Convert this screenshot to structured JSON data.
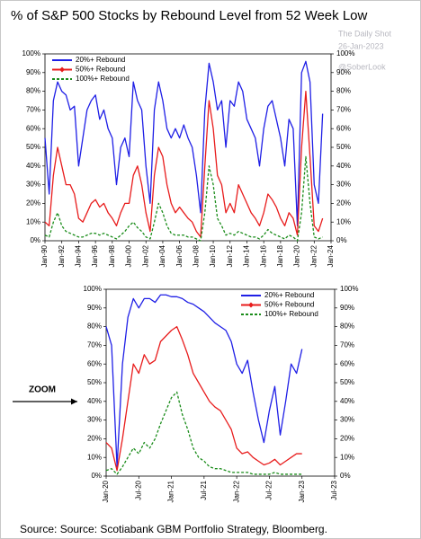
{
  "title": "% of S&P 500 Stocks by Rebound Level from 52 Week Low",
  "watermark": [
    "The Daily Shot",
    "26-Jan-2023",
    "@SoberLook"
  ],
  "annotation": "ZOOM",
  "source": "Source: Source: Scotiabank GBM Portfolio Strategy, Bloomberg.",
  "chart_data": [
    {
      "type": "line",
      "legend": "upper left",
      "x": [
        "1990-01",
        "1990-07",
        "1991-01",
        "1991-07",
        "1992-01",
        "1992-07",
        "1993-01",
        "1993-07",
        "1994-01",
        "1994-07",
        "1995-01",
        "1995-07",
        "1996-01",
        "1996-07",
        "1997-01",
        "1997-07",
        "1998-01",
        "1998-07",
        "1999-01",
        "1999-07",
        "2000-01",
        "2000-07",
        "2001-01",
        "2001-07",
        "2002-01",
        "2002-07",
        "2003-01",
        "2003-07",
        "2004-01",
        "2004-07",
        "2005-01",
        "2005-07",
        "2006-01",
        "2006-07",
        "2007-01",
        "2007-07",
        "2008-01",
        "2008-07",
        "2009-01",
        "2009-07",
        "2010-01",
        "2010-07",
        "2011-01",
        "2011-07",
        "2012-01",
        "2012-07",
        "2013-01",
        "2013-07",
        "2014-01",
        "2014-07",
        "2015-01",
        "2015-07",
        "2016-01",
        "2016-07",
        "2017-01",
        "2017-07",
        "2018-01",
        "2018-07",
        "2019-01",
        "2019-07",
        "2020-01",
        "2020-07",
        "2021-01",
        "2021-07",
        "2022-01",
        "2022-07",
        "2023-01"
      ],
      "series": [
        {
          "name": "20%+ Rebound",
          "color": "#1f1fe6",
          "dash": false,
          "marker": "none",
          "values": [
            55,
            25,
            75,
            85,
            80,
            78,
            70,
            72,
            40,
            55,
            70,
            75,
            78,
            65,
            70,
            60,
            55,
            30,
            50,
            55,
            45,
            85,
            75,
            70,
            40,
            20,
            70,
            85,
            75,
            60,
            55,
            60,
            55,
            62,
            55,
            50,
            35,
            15,
            70,
            95,
            85,
            70,
            75,
            50,
            75,
            72,
            85,
            80,
            65,
            60,
            55,
            40,
            60,
            72,
            75,
            65,
            55,
            40,
            65,
            60,
            8,
            90,
            96,
            85,
            30,
            20,
            68
          ]
        },
        {
          "name": "50%+ Rebound",
          "color": "#e81c1c",
          "dash": false,
          "marker": "diamond",
          "values": [
            10,
            8,
            35,
            50,
            40,
            30,
            30,
            25,
            12,
            10,
            15,
            20,
            22,
            18,
            20,
            15,
            12,
            8,
            15,
            20,
            20,
            35,
            40,
            30,
            15,
            5,
            35,
            50,
            45,
            30,
            20,
            15,
            18,
            15,
            12,
            10,
            5,
            2,
            40,
            75,
            60,
            35,
            30,
            15,
            20,
            15,
            30,
            25,
            20,
            15,
            12,
            8,
            15,
            25,
            22,
            18,
            12,
            8,
            15,
            12,
            3,
            50,
            80,
            45,
            8,
            5,
            12
          ]
        },
        {
          "name": "100%+ Rebound",
          "color": "#1a8c1a",
          "dash": true,
          "marker": "none",
          "values": [
            3,
            2,
            10,
            15,
            8,
            5,
            4,
            3,
            2,
            2,
            3,
            4,
            4,
            3,
            4,
            3,
            2,
            1,
            3,
            5,
            8,
            10,
            7,
            5,
            2,
            1,
            10,
            20,
            15,
            8,
            4,
            3,
            3,
            3,
            2,
            2,
            1,
            0,
            15,
            40,
            30,
            12,
            8,
            3,
            4,
            3,
            5,
            4,
            3,
            2,
            2,
            1,
            3,
            6,
            4,
            3,
            2,
            1,
            3,
            2,
            0,
            15,
            45,
            20,
            2,
            1,
            2
          ]
        }
      ],
      "xlim": [
        "1990-01",
        "2024-01"
      ],
      "xticks": [
        {
          "value": "1990-01",
          "label": "Jan-90"
        },
        {
          "value": "1992-01",
          "label": "Jan-92"
        },
        {
          "value": "1994-01",
          "label": "Jan-94"
        },
        {
          "value": "1996-01",
          "label": "Jan-96"
        },
        {
          "value": "1998-01",
          "label": "Jan-98"
        },
        {
          "value": "2000-01",
          "label": "Jan-00"
        },
        {
          "value": "2002-01",
          "label": "Jan-02"
        },
        {
          "value": "2004-01",
          "label": "Jan-04"
        },
        {
          "value": "2006-01",
          "label": "Jan-06"
        },
        {
          "value": "2008-01",
          "label": "Jan-08"
        },
        {
          "value": "2010-01",
          "label": "Jan-10"
        },
        {
          "value": "2012-01",
          "label": "Jan-12"
        },
        {
          "value": "2014-01",
          "label": "Jan-14"
        },
        {
          "value": "2016-01",
          "label": "Jan-16"
        },
        {
          "value": "2018-01",
          "label": "Jan-18"
        },
        {
          "value": "2020-01",
          "label": "Jan-20"
        },
        {
          "value": "2022-01",
          "label": "Jan-22"
        },
        {
          "value": "2024-01",
          "label": "Jan-24"
        }
      ],
      "ylim": [
        0,
        100
      ],
      "yticks": [
        {
          "value": 0,
          "label": "0%"
        },
        {
          "value": 10,
          "label": "10%"
        },
        {
          "value": 20,
          "label": "20%"
        },
        {
          "value": 30,
          "label": "30%"
        },
        {
          "value": 40,
          "label": "40%"
        },
        {
          "value": 50,
          "label": "50%"
        },
        {
          "value": 60,
          "label": "60%"
        },
        {
          "value": 70,
          "label": "70%"
        },
        {
          "value": 80,
          "label": "80%"
        },
        {
          "value": 90,
          "label": "90%"
        },
        {
          "value": 100,
          "label": "100%"
        }
      ],
      "y2lim": [
        0,
        100
      ],
      "y2ticks": [
        {
          "value": 0,
          "label": "0%"
        },
        {
          "value": 10,
          "label": "10%"
        },
        {
          "value": 20,
          "label": "20%"
        },
        {
          "value": 30,
          "label": "30%"
        },
        {
          "value": 40,
          "label": "40%"
        },
        {
          "value": 50,
          "label": "50%"
        },
        {
          "value": 60,
          "label": "60%"
        },
        {
          "value": 70,
          "label": "70%"
        },
        {
          "value": 80,
          "label": "80%"
        },
        {
          "value": 90,
          "label": "90%"
        },
        {
          "value": 100,
          "label": "100%"
        }
      ]
    },
    {
      "type": "line",
      "legend": "upper right",
      "x": [
        "2020-01",
        "2020-02",
        "2020-03",
        "2020-04",
        "2020-05",
        "2020-06",
        "2020-07",
        "2020-08",
        "2020-09",
        "2020-10",
        "2020-11",
        "2020-12",
        "2021-01",
        "2021-02",
        "2021-03",
        "2021-04",
        "2021-05",
        "2021-06",
        "2021-07",
        "2021-08",
        "2021-09",
        "2021-10",
        "2021-11",
        "2021-12",
        "2022-01",
        "2022-02",
        "2022-03",
        "2022-04",
        "2022-05",
        "2022-06",
        "2022-07",
        "2022-08",
        "2022-09",
        "2022-10",
        "2022-11",
        "2022-12",
        "2023-01"
      ],
      "series": [
        {
          "name": "20%+ Rebound",
          "color": "#1f1fe6",
          "dash": false,
          "marker": "none",
          "values": [
            80,
            70,
            5,
            60,
            85,
            95,
            90,
            95,
            95,
            93,
            97,
            97,
            96,
            96,
            95,
            93,
            92,
            90,
            88,
            85,
            82,
            80,
            78,
            72,
            60,
            55,
            62,
            45,
            30,
            18,
            35,
            48,
            22,
            40,
            60,
            55,
            68
          ]
        },
        {
          "name": "50%+ Rebound",
          "color": "#e81c1c",
          "dash": false,
          "marker": "diamond",
          "values": [
            18,
            15,
            3,
            20,
            40,
            60,
            55,
            65,
            60,
            62,
            72,
            75,
            78,
            80,
            73,
            65,
            55,
            50,
            45,
            40,
            37,
            35,
            30,
            25,
            15,
            12,
            13,
            10,
            8,
            6,
            7,
            9,
            6,
            8,
            10,
            12,
            12
          ]
        },
        {
          "name": "100%+ Rebound",
          "color": "#1a8c1a",
          "dash": true,
          "marker": "none",
          "values": [
            3,
            4,
            1,
            5,
            10,
            15,
            12,
            18,
            15,
            20,
            28,
            35,
            42,
            45,
            33,
            25,
            15,
            10,
            8,
            5,
            4,
            4,
            3,
            2,
            2,
            2,
            2,
            1,
            1,
            1,
            1,
            2,
            1,
            1,
            1,
            1,
            1
          ]
        }
      ],
      "xlim": [
        "2020-01",
        "2023-07"
      ],
      "xticks": [
        {
          "value": "2020-01",
          "label": "Jan-20"
        },
        {
          "value": "2020-07",
          "label": "Jul-20"
        },
        {
          "value": "2021-01",
          "label": "Jan-21"
        },
        {
          "value": "2021-07",
          "label": "Jul-21"
        },
        {
          "value": "2022-01",
          "label": "Jan-22"
        },
        {
          "value": "2022-07",
          "label": "Jul-22"
        },
        {
          "value": "2023-01",
          "label": "Jan-23"
        },
        {
          "value": "2023-07",
          "label": "Jul-23"
        }
      ],
      "ylim": [
        0,
        100
      ],
      "yticks": [
        {
          "value": 0,
          "label": "0%"
        },
        {
          "value": 10,
          "label": "10%"
        },
        {
          "value": 20,
          "label": "20%"
        },
        {
          "value": 30,
          "label": "30%"
        },
        {
          "value": 40,
          "label": "40%"
        },
        {
          "value": 50,
          "label": "50%"
        },
        {
          "value": 60,
          "label": "60%"
        },
        {
          "value": 70,
          "label": "70%"
        },
        {
          "value": 80,
          "label": "80%"
        },
        {
          "value": 90,
          "label": "90%"
        },
        {
          "value": 100,
          "label": "100%"
        }
      ],
      "y2lim": [
        0,
        100
      ],
      "y2ticks": [
        {
          "value": 0,
          "label": "0%"
        },
        {
          "value": 10,
          "label": "10%"
        },
        {
          "value": 20,
          "label": "20%"
        },
        {
          "value": 30,
          "label": "30%"
        },
        {
          "value": 40,
          "label": "40%"
        },
        {
          "value": 50,
          "label": "50%"
        },
        {
          "value": 60,
          "label": "60%"
        },
        {
          "value": 70,
          "label": "70%"
        },
        {
          "value": 80,
          "label": "80%"
        },
        {
          "value": 90,
          "label": "90%"
        },
        {
          "value": 100,
          "label": "100%"
        }
      ]
    }
  ]
}
